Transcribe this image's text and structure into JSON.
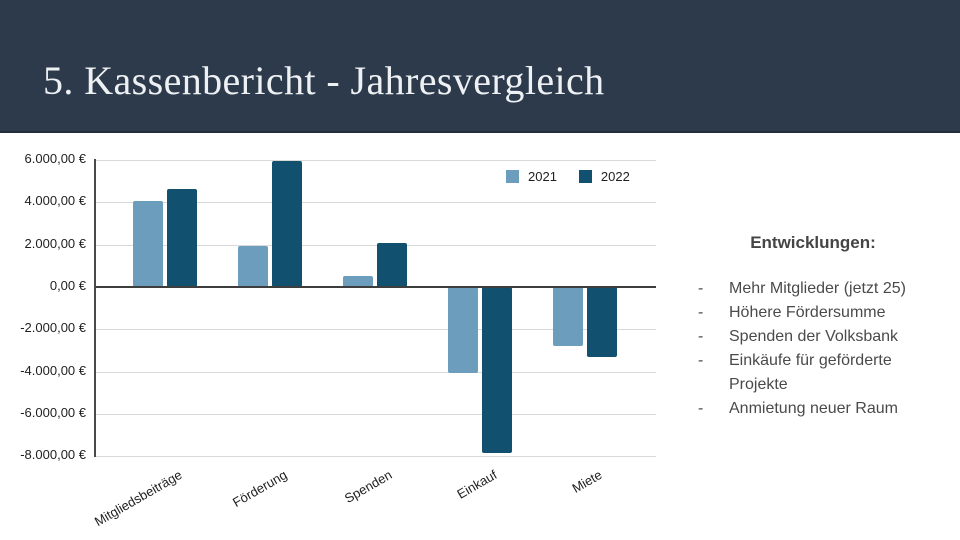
{
  "slide": {
    "title": "5. Kassenbericht - Jahresvergleich"
  },
  "chart_data": {
    "type": "bar",
    "title": "",
    "xlabel": "",
    "ylabel": "",
    "categories": [
      "Mitgliedsbeiträge",
      "Förderung",
      "Spenden",
      "Einkauf",
      "Miete"
    ],
    "series": [
      {
        "name": "2021",
        "color": "#6d9dbd",
        "values": [
          4050,
          1950,
          500,
          -4050,
          -2800
        ]
      },
      {
        "name": "2022",
        "color": "#11506e",
        "values": [
          4650,
          5950,
          2100,
          -7850,
          -3300
        ]
      }
    ],
    "y_ticks": [
      {
        "value": 6000,
        "label": "6.000,00 €"
      },
      {
        "value": 4000,
        "label": "4.000,00 €"
      },
      {
        "value": 2000,
        "label": "2.000,00 €"
      },
      {
        "value": 0,
        "label": "0,00 €"
      },
      {
        "value": -2000,
        "label": "-2.000,00 €"
      },
      {
        "value": -4000,
        "label": "-4.000,00 €"
      },
      {
        "value": -6000,
        "label": "-6.000,00 €"
      },
      {
        "value": -8000,
        "label": "-8.000,00 €"
      }
    ],
    "ylim": [
      -8000,
      6000
    ],
    "grid": true,
    "legend_position": "top-right"
  },
  "notes": {
    "heading": "Entwicklungen:",
    "bullet": "-",
    "items": [
      "Mehr Mitglieder (jetzt 25)",
      "Höhere Fördersumme",
      "Spenden der Volksbank",
      "Einkäufe für geförderte Projekte",
      "Anmietung neuer Raum"
    ]
  },
  "colors": {
    "header_bg": "#2d3a4c",
    "title_text": "#eef1f3",
    "series_2021": "#6d9dbd",
    "series_2022": "#11506e",
    "notes_text": "#4a4a4a",
    "gridline": "#d9d9d9",
    "axis": "#4a4a4a"
  }
}
